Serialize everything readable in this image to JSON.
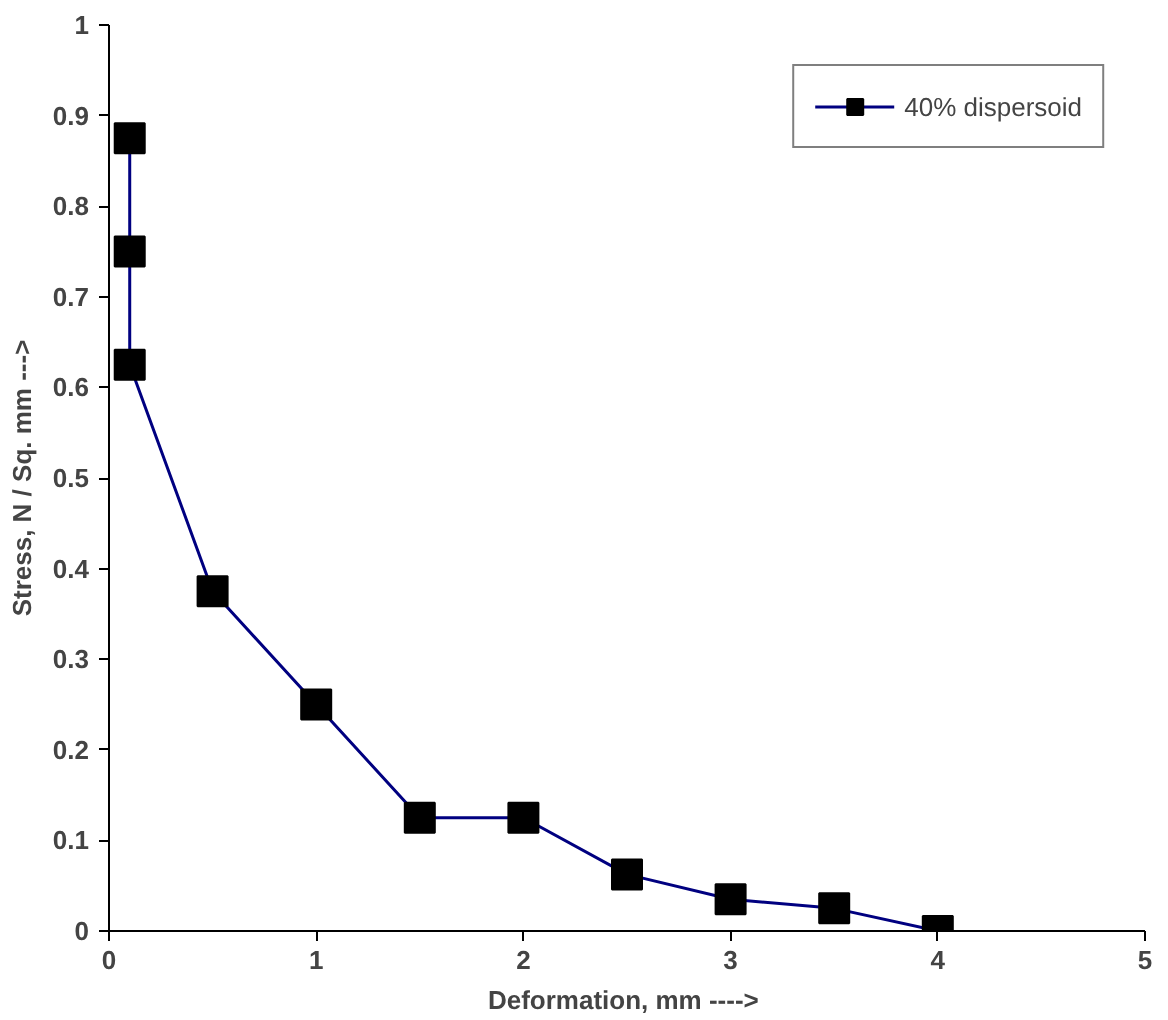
{
  "chart_data": {
    "type": "line",
    "xlabel": "Deformation,  mm ---->",
    "ylabel": "Stress, N / Sq. mm --->",
    "x": [
      0.1,
      0.1,
      0.1,
      0.5,
      1,
      1.5,
      2,
      2.5,
      3,
      3.5,
      4
    ],
    "series": [
      {
        "name": "40% dispersoid",
        "color": "#000080",
        "values": [
          0.875,
          0.75,
          0.625,
          0.375,
          0.25,
          0.125,
          0.125,
          0.0625,
          0.035,
          0.025,
          0
        ]
      }
    ],
    "xlim": [
      0,
      5
    ],
    "ylim": [
      0,
      1
    ],
    "xticks": [
      0,
      1,
      2,
      3,
      4,
      5
    ],
    "yticks": [
      0,
      0.1,
      0.2,
      0.3,
      0.4,
      0.5,
      0.6,
      0.7,
      0.8,
      0.9,
      1
    ],
    "marker": "square",
    "line_style": "solid",
    "grid": false,
    "legend": "top right"
  }
}
